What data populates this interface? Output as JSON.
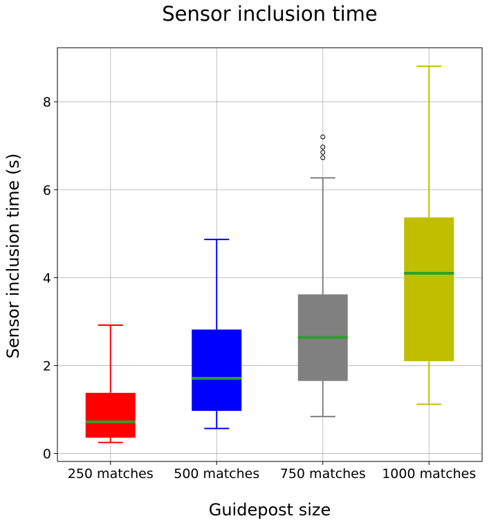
{
  "chart_data": {
    "type": "box",
    "title": "Sensor inclusion time",
    "xlabel": "Guidepost size",
    "ylabel": "Sensor inclusion time (s)",
    "ylim": [
      -0.18,
      9.23
    ],
    "yticks": [
      0,
      2,
      4,
      6,
      8
    ],
    "grid": true,
    "median_color": "#2ca02c",
    "categories": [
      "250 matches",
      "500 matches",
      "750 matches",
      "1000 matches"
    ],
    "series": [
      {
        "category": "250 matches",
        "color": "#ff0000",
        "whisker_low": 0.25,
        "q1": 0.36,
        "median": 0.72,
        "q3": 1.38,
        "whisker_high": 2.92,
        "outliers": []
      },
      {
        "category": "500 matches",
        "color": "#0000ff",
        "whisker_low": 0.57,
        "q1": 0.97,
        "median": 1.71,
        "q3": 2.82,
        "whisker_high": 4.87,
        "outliers": []
      },
      {
        "category": "750 matches",
        "color": "#808080",
        "whisker_low": 0.84,
        "q1": 1.65,
        "median": 2.64,
        "q3": 3.62,
        "whisker_high": 6.27,
        "outliers": [
          6.73,
          6.85,
          6.97,
          7.2
        ]
      },
      {
        "category": "1000 matches",
        "color": "#bfbf00",
        "whisker_low": 1.12,
        "q1": 2.1,
        "median": 4.1,
        "q3": 5.37,
        "whisker_high": 8.81,
        "outliers": []
      }
    ]
  }
}
